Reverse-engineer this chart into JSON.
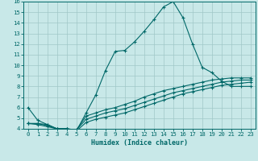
{
  "xlabel": "Humidex (Indice chaleur)",
  "background_color": "#c8e8e8",
  "grid_color": "#a0c8c8",
  "line_color": "#006868",
  "xlim": [
    -0.5,
    23.5
  ],
  "ylim": [
    4,
    16
  ],
  "xticks": [
    0,
    1,
    2,
    3,
    4,
    5,
    6,
    7,
    8,
    9,
    10,
    11,
    12,
    13,
    14,
    15,
    16,
    17,
    18,
    19,
    20,
    21,
    22,
    23
  ],
  "yticks": [
    4,
    5,
    6,
    7,
    8,
    9,
    10,
    11,
    12,
    13,
    14,
    15,
    16
  ],
  "line1_x": [
    0,
    1,
    2,
    3,
    4,
    5,
    6,
    7,
    8,
    9,
    10,
    11,
    12,
    13,
    14,
    15,
    16,
    17,
    18,
    19,
    20,
    21,
    22,
    23
  ],
  "line1_y": [
    6.0,
    4.8,
    4.4,
    4.0,
    4.0,
    3.8,
    5.5,
    7.2,
    9.5,
    11.3,
    11.4,
    12.2,
    13.2,
    14.3,
    15.5,
    16.0,
    14.5,
    12.0,
    9.8,
    9.3,
    8.5,
    8.0,
    8.0,
    8.0
  ],
  "line2_x": [
    0,
    1,
    2,
    3,
    4,
    5,
    6,
    7,
    8,
    9,
    10,
    11,
    12,
    13,
    14,
    15,
    16,
    17,
    18,
    19,
    20,
    21,
    22,
    23
  ],
  "line2_y": [
    4.5,
    4.5,
    4.4,
    4.0,
    4.0,
    3.9,
    5.2,
    5.5,
    5.8,
    6.0,
    6.3,
    6.6,
    7.0,
    7.3,
    7.6,
    7.8,
    8.0,
    8.2,
    8.4,
    8.6,
    8.7,
    8.8,
    8.8,
    8.8
  ],
  "line3_x": [
    0,
    1,
    2,
    3,
    4,
    5,
    6,
    7,
    8,
    9,
    10,
    11,
    12,
    13,
    14,
    15,
    16,
    17,
    18,
    19,
    20,
    21,
    22,
    23
  ],
  "line3_y": [
    4.5,
    4.5,
    4.3,
    4.0,
    4.0,
    3.9,
    4.9,
    5.2,
    5.5,
    5.7,
    5.9,
    6.2,
    6.5,
    6.8,
    7.1,
    7.4,
    7.6,
    7.8,
    8.0,
    8.2,
    8.4,
    8.5,
    8.6,
    8.6
  ],
  "line4_x": [
    0,
    1,
    2,
    3,
    4,
    5,
    6,
    7,
    8,
    9,
    10,
    11,
    12,
    13,
    14,
    15,
    16,
    17,
    18,
    19,
    20,
    21,
    22,
    23
  ],
  "line4_y": [
    4.5,
    4.4,
    4.2,
    4.0,
    4.0,
    3.8,
    4.6,
    4.9,
    5.1,
    5.3,
    5.5,
    5.8,
    6.1,
    6.4,
    6.7,
    7.0,
    7.3,
    7.5,
    7.7,
    7.9,
    8.1,
    8.2,
    8.3,
    8.4
  ],
  "xlabel_fontsize": 6.0,
  "tick_fontsize": 5.2
}
